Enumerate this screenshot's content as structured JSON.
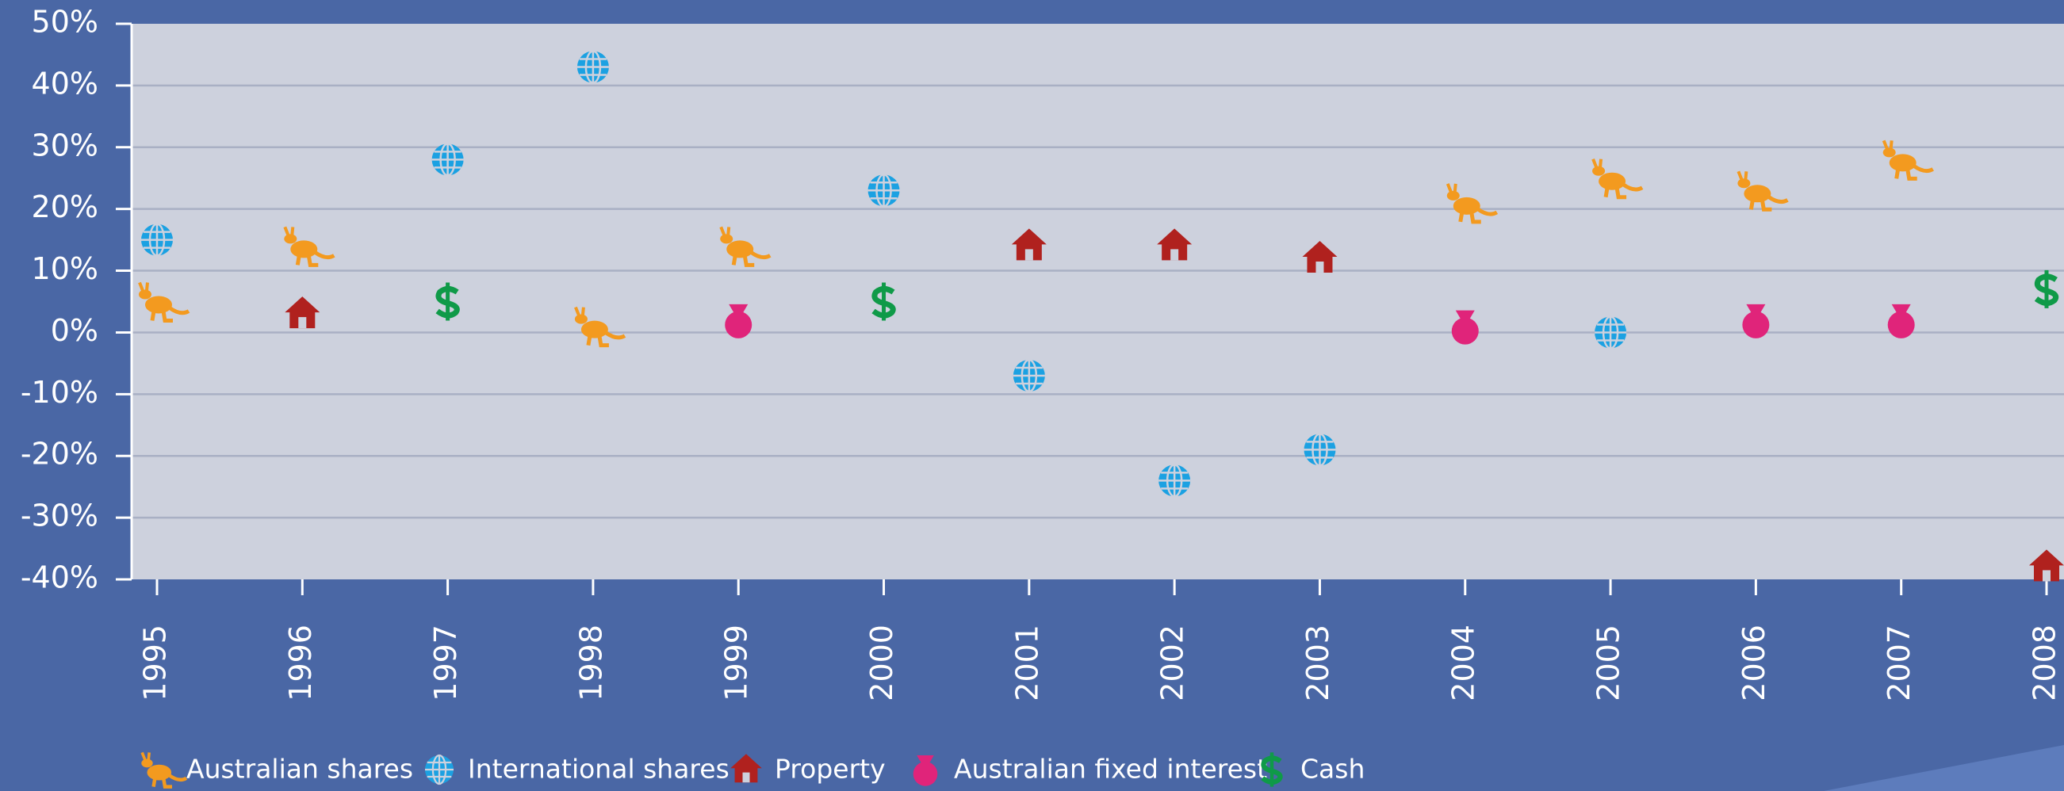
{
  "chart_data": {
    "type": "scatter",
    "categories": [
      "1995",
      "1996",
      "1997",
      "1998",
      "1999",
      "2000",
      "2001",
      "2002",
      "2003",
      "2004",
      "2005",
      "2006",
      "2007",
      "2008"
    ],
    "series": [
      {
        "name": "Australian shares",
        "color": "#f39a1f",
        "values": [
          5,
          14,
          null,
          1,
          14,
          null,
          null,
          null,
          null,
          21,
          25,
          23,
          28,
          null
        ]
      },
      {
        "name": "International shares",
        "color": "#1ba1e2",
        "values": [
          15,
          null,
          28,
          43,
          null,
          23,
          -7,
          -24,
          -19,
          null,
          0,
          null,
          null,
          null
        ]
      },
      {
        "name": "Property",
        "color": "#b0211e",
        "values": [
          null,
          3,
          null,
          null,
          null,
          null,
          14,
          14,
          12,
          null,
          null,
          null,
          null,
          -38
        ]
      },
      {
        "name": "Australian fixed interest",
        "color": "#e0247a",
        "values": [
          null,
          null,
          null,
          null,
          2,
          null,
          null,
          null,
          null,
          1,
          null,
          2,
          2,
          null
        ]
      },
      {
        "name": "Cash",
        "color": "#0f9a48",
        "values": [
          null,
          null,
          5,
          null,
          null,
          5,
          null,
          null,
          null,
          null,
          null,
          null,
          null,
          7
        ]
      }
    ],
    "ylim": [
      -40,
      50
    ],
    "yticks": [
      {
        "value": -40,
        "label": "-40%"
      },
      {
        "value": -30,
        "label": "-30%"
      },
      {
        "value": -20,
        "label": "-20%"
      },
      {
        "value": -10,
        "label": "-10%"
      },
      {
        "value": 0,
        "label": "0%"
      },
      {
        "value": 10,
        "label": "10%"
      },
      {
        "value": 20,
        "label": "20%"
      },
      {
        "value": 30,
        "label": "30%"
      },
      {
        "value": 40,
        "label": "40%"
      },
      {
        "value": 50,
        "label": "50%"
      }
    ],
    "grid": true,
    "legend": "bottom"
  }
}
